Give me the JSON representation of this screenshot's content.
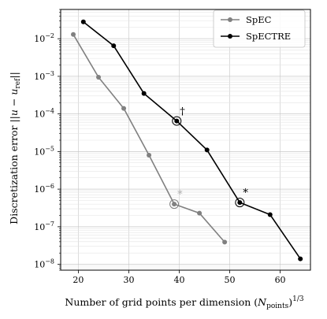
{
  "chart_data": {
    "type": "line",
    "yscale": "log",
    "xlabel": "Number of grid points per dimension (N_points)^(1/3)",
    "xlabel_parts": {
      "main": "Number of grid points per dimension (",
      "sym": "N",
      "sub": "points",
      "close": ")",
      "exp": "1/3"
    },
    "ylabel": "Discretization error ||u − u_ref||",
    "ylabel_parts": {
      "main": "Discretization error ||",
      "u1": "u",
      "minus": " − ",
      "u2": "u",
      "sub": "ref",
      "close": "||"
    },
    "xlim": [
      16.5,
      66
    ],
    "ylim": [
      7e-09,
      0.06
    ],
    "xticks": [
      20,
      30,
      40,
      50,
      60
    ],
    "xtick_labels": [
      "20",
      "30",
      "40",
      "50",
      "60"
    ],
    "yticks": [
      1e-08,
      1e-07,
      1e-06,
      1e-05,
      0.0001,
      0.001,
      0.01
    ],
    "ytick_labels": [
      {
        "base": "10",
        "exp": "−8"
      },
      {
        "base": "10",
        "exp": "−7"
      },
      {
        "base": "10",
        "exp": "−6"
      },
      {
        "base": "10",
        "exp": "−5"
      },
      {
        "base": "10",
        "exp": "−4"
      },
      {
        "base": "10",
        "exp": "−3"
      },
      {
        "base": "10",
        "exp": "−2"
      }
    ],
    "grid": true,
    "legend": "top-right",
    "series": [
      {
        "name": "SpEC",
        "color": "#808080",
        "x": [
          19,
          24,
          29,
          34,
          39,
          44,
          49
        ],
        "y": [
          0.013,
          0.00095,
          0.00014,
          8e-06,
          4e-07,
          2.3e-07,
          3.9e-08
        ]
      },
      {
        "name": "SpECTRE",
        "color": "#000000",
        "x": [
          21,
          27,
          33,
          39.5,
          45.5,
          52,
          58,
          64
        ],
        "y": [
          0.028,
          0.0065,
          0.00035,
          6.5e-05,
          1.1e-05,
          4.4e-07,
          2.1e-07,
          1.4e-08
        ]
      }
    ],
    "annotations": [
      {
        "text": "*",
        "series": 0,
        "x": 39,
        "y": 4e-07,
        "color": "#b0b0b0"
      },
      {
        "text": "†",
        "series": 1,
        "x": 39.5,
        "y": 6.5e-05,
        "color": "#000000"
      },
      {
        "text": "*",
        "series": 1,
        "x": 52,
        "y": 4.4e-07,
        "color": "#000000"
      }
    ]
  }
}
